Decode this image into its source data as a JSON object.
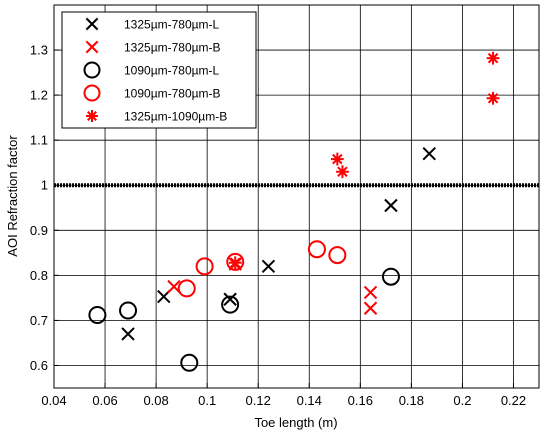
{
  "chart_data": {
    "type": "scatter",
    "xlabel": "Toe length (m)",
    "ylabel": "AOI Refraction factor",
    "xlim": [
      0.04,
      0.23
    ],
    "ylim": [
      0.55,
      1.4
    ],
    "xticks": [
      0.04,
      0.06,
      0.08,
      0.1,
      0.12,
      0.14,
      0.16,
      0.18,
      0.2,
      0.22
    ],
    "xtick_labels": [
      "0.04",
      "0.06",
      "0.08",
      "0.1",
      "0.12",
      "0.14",
      "0.16",
      "0.18",
      "0.2",
      "0.22"
    ],
    "yticks": [
      0.6,
      0.7,
      0.8,
      0.9,
      1.0,
      1.1,
      1.2,
      1.3
    ],
    "ytick_labels": [
      "0.6",
      "0.7",
      "0.8",
      "0.9",
      "1",
      "1.1",
      "1.2",
      "1.3"
    ],
    "grid": true,
    "legend_position": "top-left",
    "reference_line": {
      "y": 1.0,
      "color": "#000000",
      "style": "dotted"
    },
    "series": [
      {
        "name": "1325µm-780µm-L",
        "marker": "x",
        "color": "#000000",
        "points": [
          [
            0.069,
            0.67
          ],
          [
            0.083,
            0.753
          ],
          [
            0.109,
            0.747
          ],
          [
            0.124,
            0.82
          ],
          [
            0.172,
            0.955
          ],
          [
            0.187,
            1.07
          ]
        ]
      },
      {
        "name": "1325µm-780µm-B",
        "marker": "x",
        "color": "#ff0000",
        "points": [
          [
            0.087,
            0.775
          ],
          [
            0.111,
            0.825
          ],
          [
            0.164,
            0.762
          ],
          [
            0.164,
            0.727
          ]
        ]
      },
      {
        "name": "1090µm-780µm-L",
        "marker": "circle",
        "color": "#000000",
        "points": [
          [
            0.057,
            0.712
          ],
          [
            0.069,
            0.722
          ],
          [
            0.093,
            0.606
          ],
          [
            0.109,
            0.735
          ],
          [
            0.172,
            0.797
          ]
        ]
      },
      {
        "name": "1090µm-780µm-B",
        "marker": "circle",
        "color": "#ff0000",
        "points": [
          [
            0.092,
            0.771
          ],
          [
            0.099,
            0.82
          ],
          [
            0.111,
            0.83
          ],
          [
            0.143,
            0.858
          ],
          [
            0.151,
            0.845
          ]
        ]
      },
      {
        "name": "1325µm-1090µm-B",
        "marker": "asterisk",
        "color": "#ff0000",
        "points": [
          [
            0.111,
            0.828
          ],
          [
            0.151,
            1.058
          ],
          [
            0.153,
            1.03
          ],
          [
            0.212,
            1.282
          ],
          [
            0.212,
            1.193
          ]
        ]
      }
    ]
  }
}
